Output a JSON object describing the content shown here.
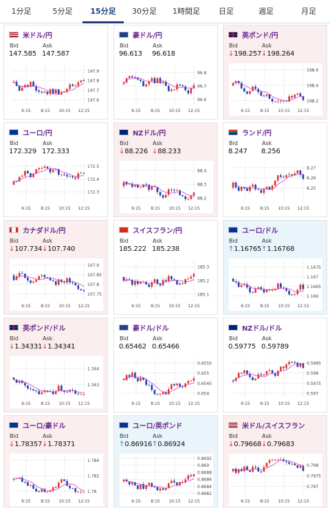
{
  "tabs": [
    "1分足",
    "5分足",
    "15分足",
    "30分足",
    "1時間足",
    "日足",
    "週足",
    "月足"
  ],
  "active_tab": 2,
  "labels": {
    "bid": "Bid",
    "ask": "Ask"
  },
  "x_ticks": [
    "6:15",
    "8:15",
    "10:15",
    "12:15"
  ],
  "cards": [
    {
      "pair": "米ドル/円",
      "flag": "us",
      "bid": "147.585",
      "ask": "147.587",
      "dir": "flat",
      "y_ticks": [
        "147.9",
        "147.8",
        "147.7",
        "147.6"
      ],
      "ylim": [
        147.55,
        147.95
      ]
    },
    {
      "pair": "豪ドル/円",
      "flag": "au",
      "bid": "96.613",
      "ask": "96.618",
      "dir": "flat",
      "y_ticks": [
        "96.8",
        "96.7",
        "96.6"
      ],
      "ylim": [
        96.56,
        96.85
      ]
    },
    {
      "pair": "英ポンド/円",
      "flag": "gb",
      "bid": "198.257",
      "ask": "198.264",
      "dir": "down",
      "y_ticks": [
        "198.6",
        "198.4",
        "198.2"
      ],
      "ylim": [
        198.15,
        198.65
      ]
    },
    {
      "pair": "ユーロ/円",
      "flag": "eu",
      "bid": "172.329",
      "ask": "172.333",
      "dir": "flat",
      "y_ticks": [
        "172.5",
        "172.4",
        "172.3"
      ],
      "ylim": [
        172.22,
        172.52
      ]
    },
    {
      "pair": "NZドル/円",
      "flag": "nz",
      "bid": "88.226",
      "ask": "88.233",
      "dir": "down",
      "y_ticks": [
        "88.4",
        "88.3",
        "88.2"
      ],
      "ylim": [
        88.17,
        88.45
      ]
    },
    {
      "pair": "ランド/円",
      "flag": "za",
      "bid": "8.247",
      "ask": "8.256",
      "dir": "flat",
      "y_ticks": [
        "8.27",
        "8.26",
        "8.25"
      ],
      "ylim": [
        8.236,
        8.274
      ]
    },
    {
      "pair": "カナダドル/円",
      "flag": "ca",
      "bid": "107.734",
      "ask": "107.740",
      "dir": "down",
      "y_ticks": [
        "107.9",
        "107.85",
        "107.8",
        "107.75"
      ],
      "ylim": [
        107.72,
        107.92
      ]
    },
    {
      "pair": "スイスフラン/円",
      "flag": "ch",
      "bid": "185.222",
      "ask": "185.238",
      "dir": "flat",
      "y_ticks": [
        "185.3",
        "185.2",
        "185.1"
      ],
      "ylim": [
        185.06,
        185.34
      ]
    },
    {
      "pair": "ユーロ/ドル",
      "flag": "eu",
      "bid": "1.16765",
      "ask": "1.16768",
      "dir": "up",
      "y_ticks": [
        "1.1675",
        "1.167",
        "1.1665",
        "1.166"
      ],
      "ylim": [
        1.1658,
        1.1678
      ]
    },
    {
      "pair": "英ポンド/ドル",
      "flag": "gb",
      "bid": "1.34331",
      "ask": "1.34341",
      "dir": "down",
      "y_ticks": [
        "1.344",
        "1.343"
      ],
      "ylim": [
        1.3422,
        1.3446
      ]
    },
    {
      "pair": "豪ドル/ドル",
      "flag": "au",
      "bid": "0.65462",
      "ask": "0.65466",
      "dir": "flat",
      "y_ticks": [
        "0.6555",
        "0.655",
        "0.6545",
        "0.654"
      ],
      "ylim": [
        0.6538,
        0.6557
      ]
    },
    {
      "pair": "NZドル/ドル",
      "flag": "nz",
      "bid": "0.59775",
      "ask": "0.59789",
      "dir": "flat",
      "y_ticks": [
        "0.5985",
        "0.598",
        "0.5975",
        "0.597"
      ],
      "ylim": [
        0.5968,
        0.5987
      ]
    },
    {
      "pair": "ユーロ/豪ドル",
      "flag": "eu",
      "bid": "1.78357",
      "ask": "1.78371",
      "dir": "down",
      "y_ticks": [
        "1.784",
        "1.782",
        "1.78"
      ],
      "ylim": [
        1.7795,
        1.7845
      ]
    },
    {
      "pair": "ユーロ/英ポンド",
      "flag": "eu",
      "bid": "0.86916",
      "ask": "0.86924",
      "dir": "up",
      "y_ticks": [
        "0.8692",
        "0.869",
        "0.8688",
        "0.8686",
        "0.8684",
        "0.8682"
      ],
      "ylim": [
        0.86815,
        0.86925
      ]
    },
    {
      "pair": "米ドル/スイスフラン",
      "flag": "us",
      "bid": "0.79668",
      "ask": "0.79683",
      "dir": "down",
      "y_ticks": [
        "0.798",
        "0.7975",
        "0.797"
      ],
      "ylim": [
        0.7966,
        0.7984
      ]
    }
  ]
}
